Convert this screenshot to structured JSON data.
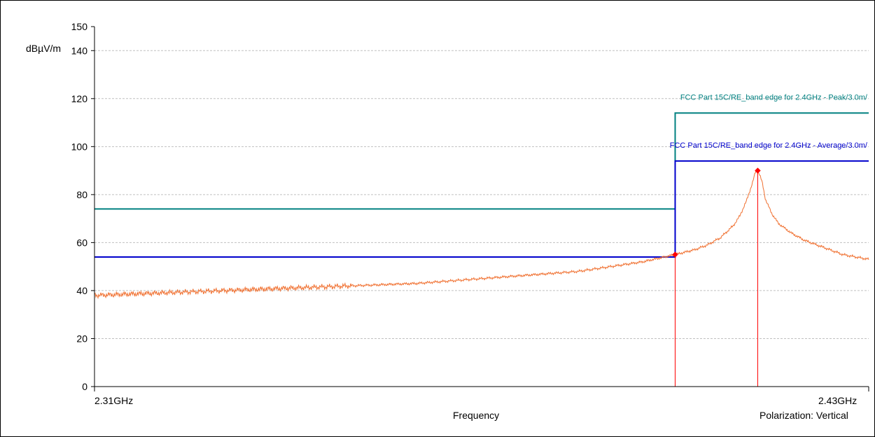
{
  "chart_data": {
    "type": "line",
    "xlabel": "Frequency",
    "ylabel": "dBµV/m",
    "x_range_label": {
      "start": "2.31GHz",
      "end": "2.43GHz"
    },
    "xlim": [
      2.31,
      2.43
    ],
    "ylim": [
      0,
      150
    ],
    "yticks": [
      0,
      20,
      40,
      60,
      80,
      100,
      120,
      140,
      150
    ],
    "polarization": "Polarization: Vertical",
    "grid": true,
    "limits": [
      {
        "name": "FCC Part 15C/RE_band edge for 2.4GHz  - Peak/3.0m/",
        "color": "#008080",
        "segments": [
          {
            "x": [
              2.31,
              2.4
            ],
            "y": 74
          },
          {
            "x": [
              2.4,
              2.43
            ],
            "y": 114
          }
        ]
      },
      {
        "name": "FCC Part 15C/RE_band edge for 2.4GHz  - Average/3.0m/",
        "color": "#0000cc",
        "segments": [
          {
            "x": [
              2.31,
              2.4
            ],
            "y": 54
          },
          {
            "x": [
              2.4,
              2.43
            ],
            "y": 94
          }
        ]
      }
    ],
    "series": [
      {
        "color": "#f07030",
        "x": [
          2.31,
          2.32,
          2.33,
          2.34,
          2.35,
          2.36,
          2.37,
          2.38,
          2.385,
          2.39,
          2.395,
          2.4,
          2.403,
          2.405,
          2.407,
          2.409,
          2.41,
          2.411,
          2.412,
          2.4125,
          2.413,
          2.4135,
          2.414,
          2.415,
          2.416,
          2.418,
          2.42,
          2.423,
          2.426,
          2.43
        ],
        "y": [
          38,
          39,
          40,
          41,
          42,
          43,
          45,
          47,
          48,
          50,
          52,
          55,
          57,
          59,
          62,
          67,
          71,
          77,
          85,
          90,
          89,
          85,
          78,
          72,
          68,
          64,
          61,
          58,
          55,
          53
        ]
      }
    ],
    "markers": [
      {
        "x": 2.4,
        "y": 55,
        "color": "#ff0000"
      },
      {
        "x": 2.4128,
        "y": 90,
        "color": "#ff0000"
      }
    ]
  }
}
